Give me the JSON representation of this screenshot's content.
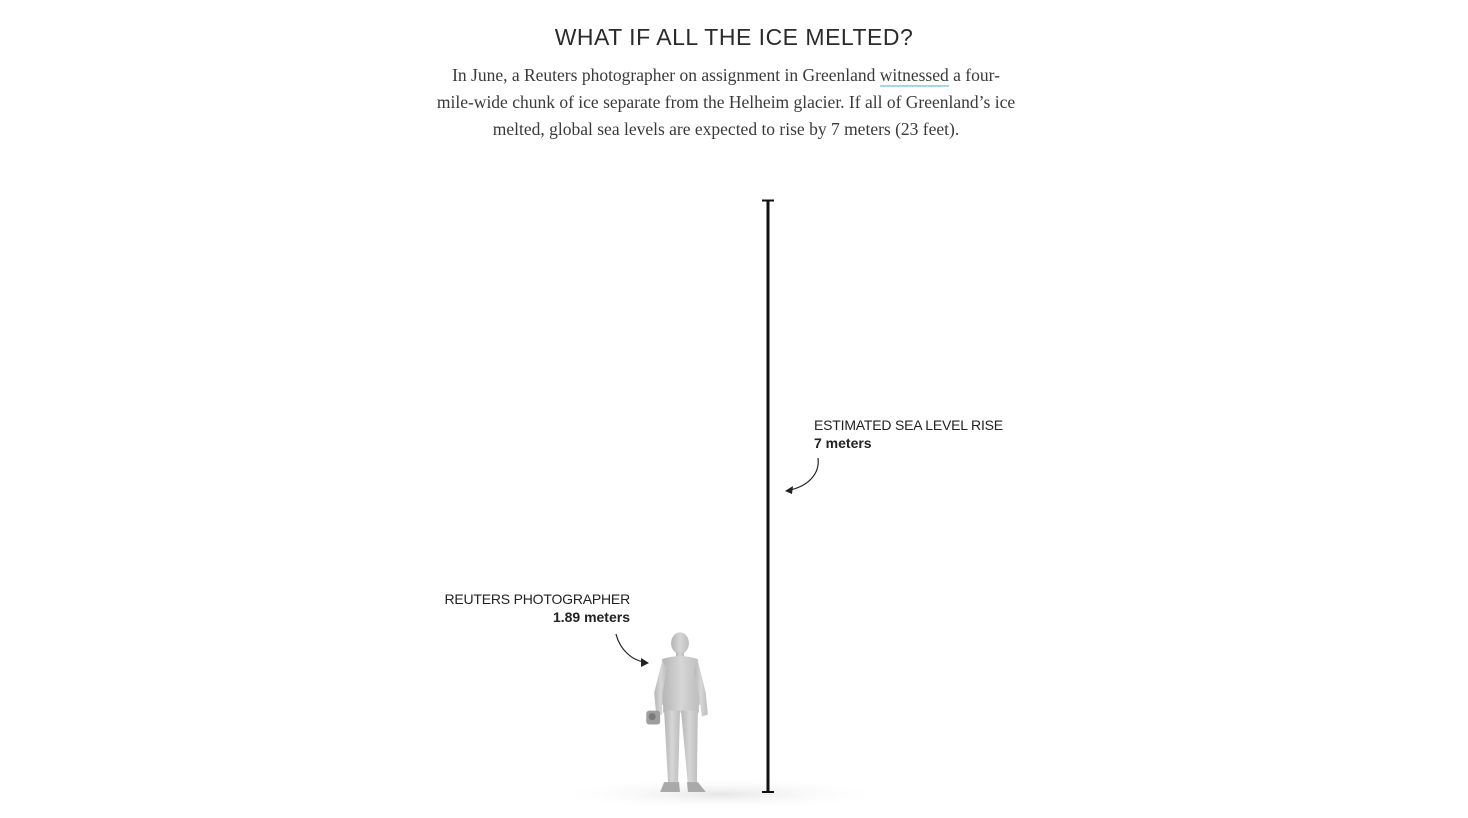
{
  "header": {
    "title": "WHAT IF ALL THE ICE MELTED?",
    "intro_before_link": "In June, a Reuters photographer on assignment in Greenland ",
    "intro_link": "witnessed",
    "intro_after_link": " a four-mile-wide chunk of ice separate from the Helheim glacier. If all of Greenland’s ice melted, global sea levels are expected to rise by 7 meters (23 feet)."
  },
  "comparison": {
    "sea_level": {
      "label": "ESTIMATED SEA LEVEL RISE",
      "value_text": "7 meters",
      "meters": 7
    },
    "person": {
      "label": "REUTERS PHOTOGRAPHER",
      "value_text": "1.89 meters",
      "meters": 1.89
    }
  },
  "colors": {
    "scale_bar": "#111111",
    "figure": "#c9c9c9",
    "link_underline": "#a9d6e3"
  }
}
